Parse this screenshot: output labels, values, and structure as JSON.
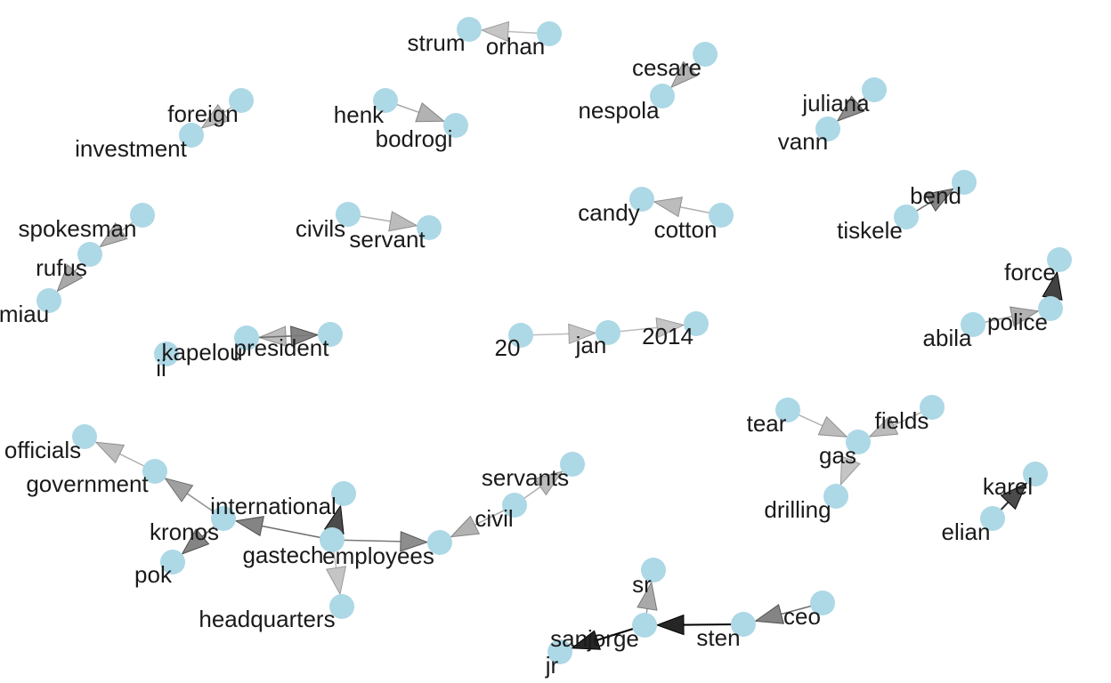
{
  "graph": {
    "nodes": [
      {
        "id": "strum",
        "label": "strum"
      },
      {
        "id": "orhan",
        "label": "orhan"
      },
      {
        "id": "cesare",
        "label": "cesare"
      },
      {
        "id": "nespola",
        "label": "nespola"
      },
      {
        "id": "foreign",
        "label": "foreign"
      },
      {
        "id": "investment",
        "label": "investment"
      },
      {
        "id": "henk",
        "label": "henk"
      },
      {
        "id": "bodrogi",
        "label": "bodrogi"
      },
      {
        "id": "juliana",
        "label": "juliana"
      },
      {
        "id": "vann",
        "label": "vann"
      },
      {
        "id": "spokesman",
        "label": "spokesman"
      },
      {
        "id": "rufus",
        "label": "rufus"
      },
      {
        "id": "miau",
        "label": "miau"
      },
      {
        "id": "civils",
        "label": "civils"
      },
      {
        "id": "servant",
        "label": "servant"
      },
      {
        "id": "candy",
        "label": "candy"
      },
      {
        "id": "cotton",
        "label": "cotton"
      },
      {
        "id": "bend",
        "label": "bend"
      },
      {
        "id": "tiskele",
        "label": "tiskele"
      },
      {
        "id": "force",
        "label": "force"
      },
      {
        "id": "police",
        "label": "police"
      },
      {
        "id": "abila",
        "label": "abila"
      },
      {
        "id": "20",
        "label": "20"
      },
      {
        "id": "jan",
        "label": "jan"
      },
      {
        "id": "2014",
        "label": "2014"
      },
      {
        "id": "president",
        "label": "president"
      },
      {
        "id": "kapelou",
        "label": "kapelou"
      },
      {
        "id": "ii",
        "label": "ii"
      },
      {
        "id": "tear",
        "label": "tear"
      },
      {
        "id": "gas",
        "label": "gas"
      },
      {
        "id": "fields",
        "label": "fields"
      },
      {
        "id": "drilling",
        "label": "drilling"
      },
      {
        "id": "officials",
        "label": "officials"
      },
      {
        "id": "government",
        "label": "government"
      },
      {
        "id": "international",
        "label": "international"
      },
      {
        "id": "kronos",
        "label": "kronos"
      },
      {
        "id": "pok",
        "label": "pok"
      },
      {
        "id": "gastech",
        "label": "gastech"
      },
      {
        "id": "employees",
        "label": "employees"
      },
      {
        "id": "headquarters",
        "label": "headquarters"
      },
      {
        "id": "civil",
        "label": "civil"
      },
      {
        "id": "servants",
        "label": "servants"
      },
      {
        "id": "karel",
        "label": "karel"
      },
      {
        "id": "elian",
        "label": "elian"
      },
      {
        "id": "sr",
        "label": "sr"
      },
      {
        "id": "sanjorge",
        "label": "sanjorge"
      },
      {
        "id": "jr",
        "label": "jr"
      },
      {
        "id": "sten",
        "label": "sten"
      },
      {
        "id": "ceo",
        "label": "ceo"
      }
    ],
    "edges": [
      {
        "from": "orhan",
        "to": "strum",
        "shade": 0.15
      },
      {
        "from": "cesare",
        "to": "nespola",
        "shade": 0.25
      },
      {
        "from": "foreign",
        "to": "investment",
        "shade": 0.2
      },
      {
        "from": "henk",
        "to": "bodrogi",
        "shade": 0.25
      },
      {
        "from": "juliana",
        "to": "vann",
        "shade": 0.45
      },
      {
        "from": "spokesman",
        "to": "rufus",
        "shade": 0.25
      },
      {
        "from": "rufus",
        "to": "miau",
        "shade": 0.3
      },
      {
        "from": "civils",
        "to": "servant",
        "shade": 0.2
      },
      {
        "from": "cotton",
        "to": "candy",
        "shade": 0.2
      },
      {
        "from": "tiskele",
        "to": "bend",
        "shade": 0.5
      },
      {
        "from": "police",
        "to": "force",
        "shade": 0.85
      },
      {
        "from": "abila",
        "to": "police",
        "shade": 0.25
      },
      {
        "from": "20",
        "to": "jan",
        "shade": 0.15
      },
      {
        "from": "jan",
        "to": "2014",
        "shade": 0.15
      },
      {
        "from": "president",
        "to": "kapelou",
        "shade": 0.2
      },
      {
        "from": "kapelou",
        "to": "president",
        "shade": 0.5
      },
      {
        "from": "tear",
        "to": "gas",
        "shade": 0.2
      },
      {
        "from": "fields",
        "to": "gas",
        "shade": 0.2
      },
      {
        "from": "gas",
        "to": "drilling",
        "shade": 0.15
      },
      {
        "from": "government",
        "to": "officials",
        "shade": 0.2
      },
      {
        "from": "kronos",
        "to": "government",
        "shade": 0.35
      },
      {
        "from": "kronos",
        "to": "pok",
        "shade": 0.5
      },
      {
        "from": "gastech",
        "to": "kronos",
        "shade": 0.5
      },
      {
        "from": "gastech",
        "to": "international",
        "shade": 0.8
      },
      {
        "from": "gastech",
        "to": "employees",
        "shade": 0.45
      },
      {
        "from": "gastech",
        "to": "headquarters",
        "shade": 0.15
      },
      {
        "from": "civil",
        "to": "employees",
        "shade": 0.25
      },
      {
        "from": "civil",
        "to": "servants",
        "shade": 0.2
      },
      {
        "from": "elian",
        "to": "karel",
        "shade": 0.8
      },
      {
        "from": "sanjorge",
        "to": "sr",
        "shade": 0.3
      },
      {
        "from": "sanjorge",
        "to": "jr",
        "shade": 1.0
      },
      {
        "from": "sten",
        "to": "sanjorge",
        "shade": 1.0
      },
      {
        "from": "ceo",
        "to": "sten",
        "shade": 0.5
      }
    ]
  }
}
